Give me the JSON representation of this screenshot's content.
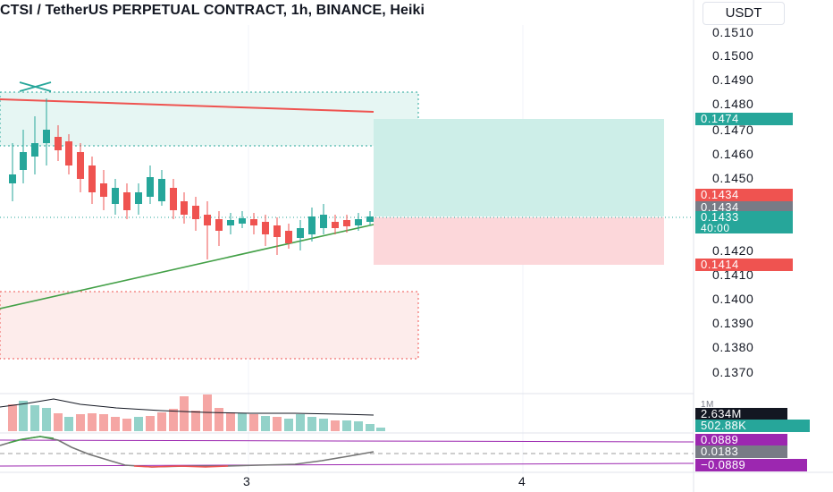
{
  "header": {
    "title": "CTSI / TetherUS PERPETUAL CONTRACT, 1h, BINANCE, Heiki",
    "currency": "USDT"
  },
  "price_axis": {
    "labels": [
      "0.1510",
      "0.1500",
      "0.1490",
      "0.1480",
      "0.1470",
      "0.1460",
      "0.1450",
      "0.1420",
      "0.1410",
      "0.1400",
      "0.1390",
      "0.1380",
      "0.1370"
    ]
  },
  "price_tags": {
    "target": "0.1474",
    "entry_red": "0.1434",
    "entry_gray": "0.1434",
    "last": "0.1433",
    "countdown": "40:00",
    "stop": "0.1414"
  },
  "volume": {
    "label": "2.634M",
    "ma": "502.88K",
    "axis_marker": "1M"
  },
  "oscillator": {
    "upper": "0.0889",
    "value": "0.0183",
    "lower": "−0.0889"
  },
  "time_axis": {
    "labels": [
      "3",
      "4"
    ]
  },
  "colors": {
    "up": "#26a69a",
    "down": "#ef5350",
    "target_zone": "#b2dfdb",
    "stop_zone": "#ffcdd2",
    "support_line": "#43a047",
    "resistance_line": "#ef5350",
    "oscillator_line": "#757575",
    "oscillator_band": "#9c27b0"
  }
}
